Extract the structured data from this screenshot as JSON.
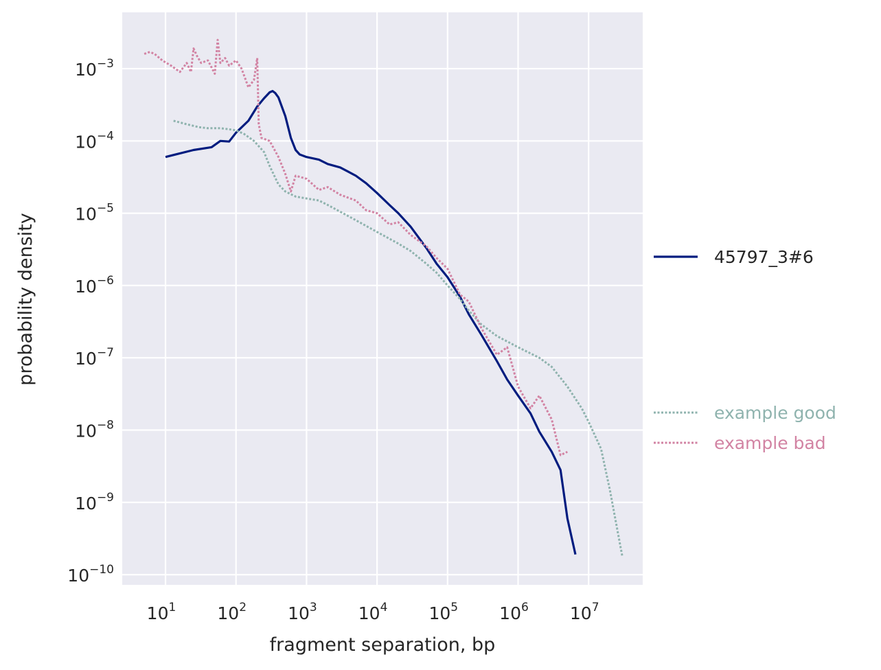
{
  "chart_data": {
    "type": "line",
    "title": "",
    "xlabel": "fragment separation, bp",
    "ylabel": "probability density",
    "x_scale": "log",
    "y_scale": "log",
    "xlim": [
      2.5,
      60000000.0
    ],
    "ylim": [
      6e-11,
      0.006
    ],
    "x_ticks": [
      {
        "base": "10",
        "exp": "1"
      },
      {
        "base": "10",
        "exp": "2"
      },
      {
        "base": "10",
        "exp": "3"
      },
      {
        "base": "10",
        "exp": "4"
      },
      {
        "base": "10",
        "exp": "5"
      },
      {
        "base": "10",
        "exp": "6"
      },
      {
        "base": "10",
        "exp": "7"
      }
    ],
    "y_ticks": [
      {
        "base": "10",
        "exp": "−3"
      },
      {
        "base": "10",
        "exp": "−4"
      },
      {
        "base": "10",
        "exp": "−5"
      },
      {
        "base": "10",
        "exp": "−6"
      },
      {
        "base": "10",
        "exp": "−7"
      },
      {
        "base": "10",
        "exp": "−8"
      },
      {
        "base": "10",
        "exp": "−9"
      },
      {
        "base": "10",
        "exp": "−10"
      }
    ],
    "grid": true,
    "legend_placement": "right",
    "series": [
      {
        "name": "45797_3#6",
        "color": "#001c7f",
        "style": "solid",
        "x": [
          10,
          25,
          45,
          60,
          80,
          100,
          150,
          200,
          250,
          300,
          330,
          360,
          400,
          500,
          600,
          700,
          800,
          1000,
          1500,
          2000,
          3000,
          5000,
          7000,
          10000,
          15000,
          20000,
          30000,
          50000,
          70000,
          100000,
          150000,
          200000,
          300000,
          500000,
          700000,
          1000000,
          1500000,
          2000000,
          3000000,
          4000000,
          5000000,
          6500000
        ],
        "y": [
          6e-05,
          7.5e-05,
          8.2e-05,
          0.0001,
          9.8e-05,
          0.00013,
          0.00019,
          0.0003,
          0.00039,
          0.00047,
          0.00049,
          0.00046,
          0.0004,
          0.00022,
          0.00011,
          7.5e-05,
          6.5e-05,
          6e-05,
          5.5e-05,
          4.8e-05,
          4.3e-05,
          3.3e-05,
          2.6e-05,
          1.9e-05,
          1.3e-05,
          1e-05,
          6.5e-06,
          3.3e-06,
          2e-06,
          1.3e-06,
          7e-07,
          4e-07,
          2.1e-07,
          9e-08,
          5e-08,
          3e-08,
          1.7e-08,
          9.5e-09,
          5e-09,
          2.8e-09,
          6e-10,
          1.9e-10
        ]
      },
      {
        "name": "example good",
        "color": "#8fb3ae",
        "style": "dotted",
        "x": [
          13,
          20,
          30,
          40,
          60,
          80,
          100,
          130,
          180,
          250,
          300,
          400,
          500,
          700,
          1000,
          1500,
          2000,
          3000,
          5000,
          10000,
          20000,
          30000,
          50000,
          70000,
          100000,
          150000,
          200000,
          300000,
          500000,
          1000000,
          2000000,
          3000000,
          5000000,
          8000000,
          10000000,
          15000000,
          20000000,
          30000000
        ],
        "y": [
          0.00019,
          0.00017,
          0.000155,
          0.00015,
          0.00015,
          0.000145,
          0.00014,
          0.000125,
          0.0001,
          7e-05,
          4.5e-05,
          2.5e-05,
          2e-05,
          1.7e-05,
          1.6e-05,
          1.5e-05,
          1.3e-05,
          1.05e-05,
          8e-06,
          5.5e-06,
          3.8e-06,
          3e-06,
          2e-06,
          1.5e-06,
          1e-06,
          6.5e-07,
          4.5e-07,
          2.9e-07,
          2e-07,
          1.4e-07,
          1e-07,
          7.5e-08,
          4e-08,
          2e-08,
          1.3e-08,
          5.5e-09,
          1.5e-09,
          1.8e-10
        ]
      },
      {
        "name": "example bad",
        "color": "#d283a3",
        "style": "dotted",
        "x": [
          5,
          6,
          7,
          9,
          12,
          16,
          20,
          23,
          25,
          28,
          32,
          40,
          50,
          55,
          60,
          70,
          80,
          100,
          120,
          150,
          180,
          200,
          210,
          230,
          300,
          400,
          500,
          600,
          700,
          1000,
          1500,
          2000,
          3000,
          5000,
          7000,
          10000,
          15000,
          20000,
          30000,
          50000,
          70000,
          100000,
          150000,
          200000,
          300000,
          500000,
          700000,
          1000000,
          1500000,
          2000000,
          3000000,
          4000000,
          5000000
        ],
        "y": [
          0.0016,
          0.0017,
          0.0016,
          0.0013,
          0.0011,
          0.0009,
          0.0012,
          0.0009,
          0.0019,
          0.0015,
          0.0012,
          0.0013,
          0.00085,
          0.0025,
          0.0012,
          0.0014,
          0.0011,
          0.0013,
          0.001,
          0.00055,
          0.0007,
          0.0014,
          0.00017,
          0.00011,
          0.0001,
          6e-05,
          3.5e-05,
          2e-05,
          3.3e-05,
          3e-05,
          2.1e-05,
          2.3e-05,
          1.8e-05,
          1.5e-05,
          1.1e-05,
          1e-05,
          7e-06,
          7.5e-06,
          5e-06,
          3.5e-06,
          2.4e-06,
          1.7e-06,
          7.5e-07,
          6e-07,
          2.6e-07,
          1.1e-07,
          1.4e-07,
          4e-08,
          2e-08,
          3e-08,
          1.4e-08,
          4.5e-09,
          5e-09
        ]
      }
    ]
  }
}
